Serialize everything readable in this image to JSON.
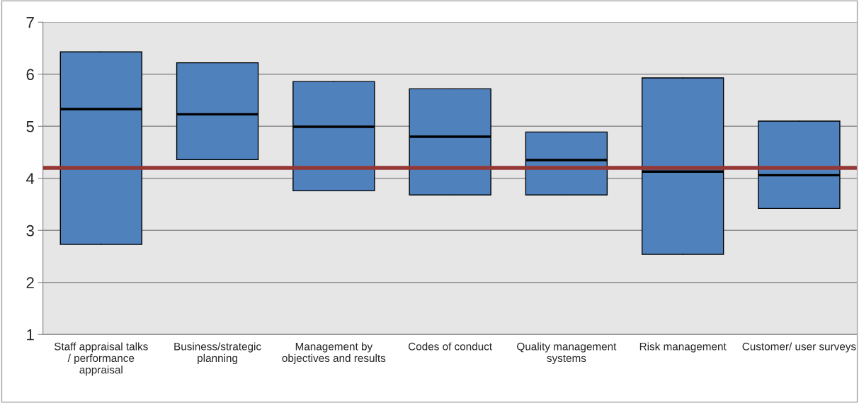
{
  "chart_data": {
    "type": "box",
    "categories": [
      "Staff appraisal talks / performance appraisal",
      "Business/strategic planning",
      "Management by objectives and results",
      "Codes of conduct",
      "Quality management systems",
      "Risk management",
      "Customer/ user surveys"
    ],
    "boxes": [
      {
        "low": 2.73,
        "q1": 2.73,
        "median": 5.33,
        "q3": 6.43,
        "high": 6.43
      },
      {
        "low": 4.36,
        "q1": 4.36,
        "median": 5.23,
        "q3": 6.22,
        "high": 6.22
      },
      {
        "low": 3.76,
        "q1": 3.76,
        "median": 4.99,
        "q3": 5.86,
        "high": 5.86
      },
      {
        "low": 3.68,
        "q1": 3.68,
        "median": 4.8,
        "q3": 5.72,
        "high": 5.72
      },
      {
        "low": 3.68,
        "q1": 3.68,
        "median": 4.35,
        "q3": 4.89,
        "high": 4.89
      },
      {
        "low": 2.54,
        "q1": 2.54,
        "median": 4.13,
        "q3": 5.93,
        "high": 5.93
      },
      {
        "low": 3.42,
        "q1": 3.42,
        "median": 4.06,
        "q3": 5.1,
        "high": 5.1
      }
    ],
    "color": "#4f81bd",
    "ylim": [
      1,
      7
    ],
    "yticks": [
      1,
      2,
      3,
      4,
      5,
      6,
      7
    ],
    "grid": "y",
    "ref_lines": [
      {
        "axis": "y",
        "value": 4.2,
        "color": "#953735"
      }
    ]
  }
}
